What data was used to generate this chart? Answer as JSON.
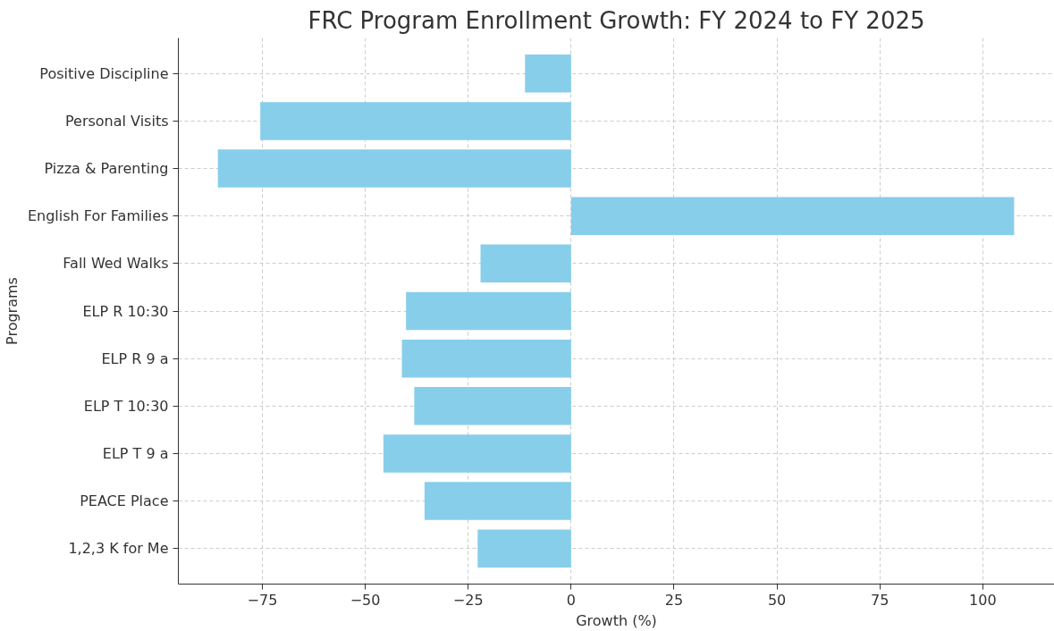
{
  "chart_data": {
    "type": "bar",
    "orientation": "horizontal",
    "title": "FRC Program Enrollment Growth: FY 2024 to FY 2025",
    "xlabel": "Growth (%)",
    "ylabel": "Programs",
    "categories": [
      "Positive Discipline",
      "Personal Visits",
      "Pizza & Parenting",
      "English For Families",
      "Fall Wed Walks",
      "ELP R 10:30",
      "ELP R 9 a",
      "ELP T 10:30",
      "ELP T 9 a",
      "PEACE Place",
      "1,2,3 K for Me"
    ],
    "values": [
      -11.2,
      -75.5,
      -85.8,
      107.6,
      -22.0,
      -40.1,
      -41.1,
      -38.1,
      -45.6,
      -35.6,
      -22.7
    ],
    "color": "#87ceeb",
    "xlim": [
      -95.4,
      117.4
    ],
    "xticks": [
      {
        "value": -75,
        "label": "−75"
      },
      {
        "value": -50,
        "label": "−50"
      },
      {
        "value": -25,
        "label": "−25"
      },
      0,
      25,
      50,
      75,
      100
    ],
    "grid": true
  }
}
